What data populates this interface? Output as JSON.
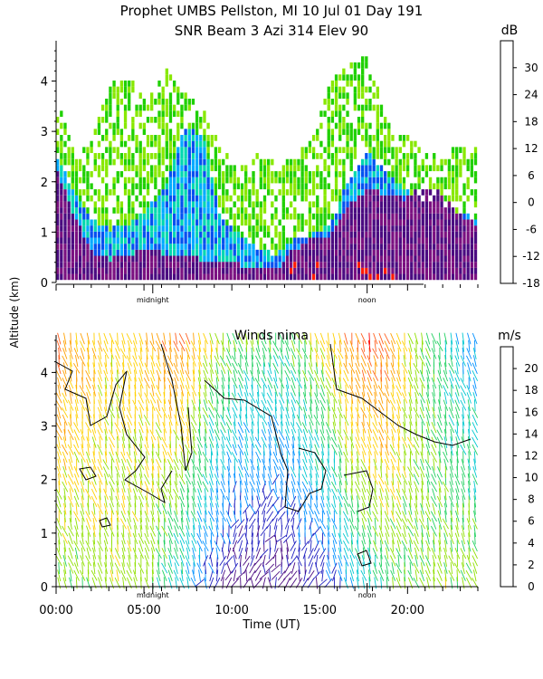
{
  "title_line1": "Prophet  UMBS Pellston, MI  10 Jul 01 Day 191",
  "title_line2": "SNR Beam 3 Azi 314 Elev 90",
  "ylabel": "Altitude (km)",
  "xlabel": "Time (UT)",
  "midnight_label": "midnight",
  "noon_label": "noon",
  "chart_data": [
    {
      "type": "heatmap",
      "title": "",
      "xlabel": "",
      "ylabel": "Altitude (km)",
      "units": "dB",
      "xlim": [
        0,
        24
      ],
      "ylim": [
        0,
        4.8
      ],
      "y_ticks": [
        "0",
        "1",
        "2",
        "3",
        "4"
      ],
      "colorbar": {
        "label": "dB",
        "min": -18,
        "max": 36,
        "ticks": [
          "-18",
          "-12",
          "-6",
          "0",
          "6",
          "12",
          "18",
          "24",
          "30"
        ],
        "colors": [
          "#88e800",
          "#1fd000",
          "#00d8b0",
          "#00aaff",
          "#0050f0",
          "#1010c0",
          "#4a0a80",
          "#7a1080",
          "#ff1a00",
          "#ff8a00",
          "#ffb800",
          "#ffd000"
        ]
      },
      "x_hours": [
        0,
        1,
        2,
        3,
        4,
        5,
        6,
        7,
        8,
        9,
        10,
        11,
        12,
        13,
        14,
        15,
        16,
        17,
        18,
        19,
        20,
        21,
        22,
        23
      ],
      "top_height_km": [
        3.6,
        2.6,
        2.8,
        3.9,
        4.0,
        3.5,
        4.2,
        3.8,
        3.4,
        2.6,
        2.2,
        2.5,
        2.3,
        2.4,
        2.8,
        3.9,
        4.3,
        4.5,
        3.2,
        3.0,
        2.6,
        2.4,
        2.7,
        2.6
      ],
      "mid_height_km": [
        2.4,
        1.8,
        1.2,
        1.0,
        1.1,
        1.4,
        1.8,
        3.0,
        2.9,
        1.2,
        0.9,
        0.6,
        0.5,
        0.8,
        0.9,
        1.1,
        2.0,
        2.6,
        2.1,
        1.8,
        1.6,
        1.5,
        1.3,
        1.2
      ],
      "low_height_km": [
        2.2,
        1.3,
        0.5,
        0.4,
        0.5,
        0.6,
        0.5,
        0.5,
        0.4,
        0.3,
        0.3,
        0.2,
        0.2,
        0.6,
        0.8,
        0.9,
        1.5,
        1.8,
        1.7,
        1.6,
        1.9,
        1.7,
        1.3,
        1.1
      ]
    },
    {
      "type": "heatmap",
      "title": "Winds nima",
      "xlabel": "Time (UT)",
      "ylabel": "Altitude (km)",
      "units": "m/s",
      "xlim": [
        0,
        24
      ],
      "ylim": [
        0,
        4.7
      ],
      "x_ticks": [
        "00:00",
        "05:00",
        "10:00",
        "15:00",
        "20:00"
      ],
      "x_tick_hours": [
        0,
        5,
        10,
        15,
        20
      ],
      "y_ticks": [
        "0",
        "1",
        "2",
        "3",
        "4"
      ],
      "colorbar": {
        "label": "m/s",
        "min": 0,
        "max": 22,
        "ticks": [
          "0",
          "2",
          "4",
          "6",
          "8",
          "10",
          "12",
          "14",
          "16",
          "18",
          "20"
        ],
        "colors": [
          "#000000",
          "#4a0a80",
          "#2020c0",
          "#0090ff",
          "#00c8d0",
          "#20d060",
          "#90e000",
          "#ffd000",
          "#ffa000",
          "#ff6020",
          "#ff0000"
        ]
      },
      "x_hours": [
        0,
        1,
        2,
        3,
        4,
        5,
        6,
        7,
        8,
        9,
        10,
        11,
        12,
        13,
        14,
        15,
        16,
        17,
        18,
        19,
        20,
        21,
        22,
        23
      ],
      "speed_low_mps": [
        12,
        12,
        13,
        13,
        13,
        12,
        10,
        8,
        6,
        4,
        3,
        3,
        3,
        3,
        4,
        5,
        8,
        9,
        11,
        12,
        12,
        13,
        13,
        13
      ],
      "speed_high_mps": [
        19,
        17,
        16,
        15,
        15,
        16,
        18,
        18,
        15,
        13,
        12,
        12,
        11,
        12,
        14,
        15,
        18,
        20,
        19,
        15,
        12,
        10,
        8,
        7
      ]
    }
  ]
}
